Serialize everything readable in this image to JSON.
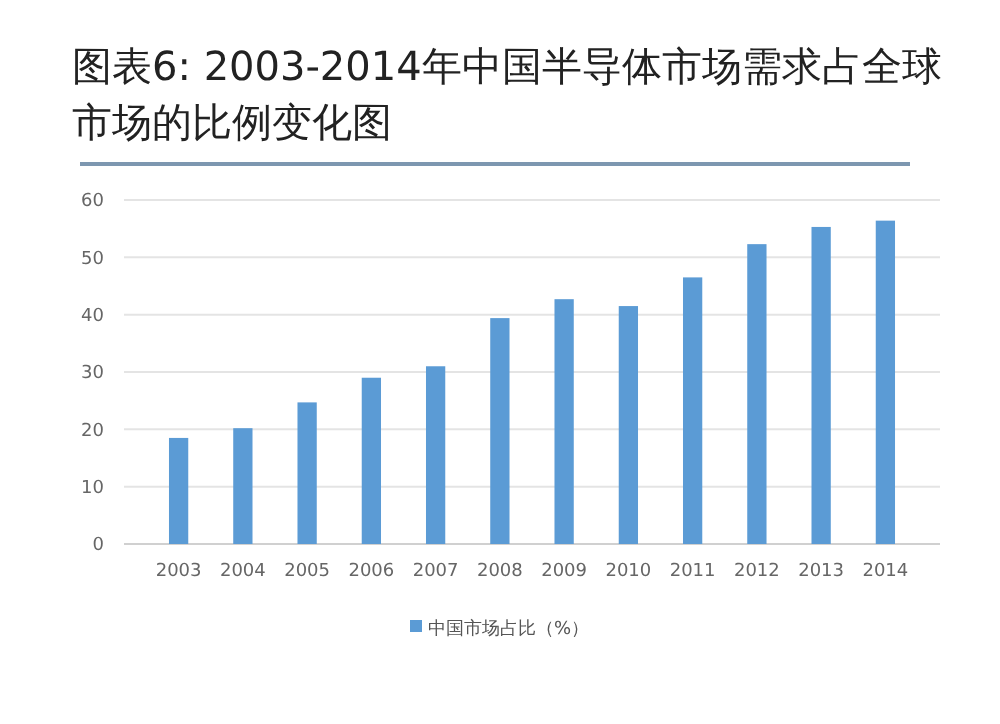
{
  "chart_data": {
    "type": "bar",
    "title": "图表6: 2003-2014年中国半导体市场需求占全球市场的比例变化图",
    "categories": [
      "2003",
      "2004",
      "2005",
      "2006",
      "2007",
      "2008",
      "2009",
      "2010",
      "2011",
      "2012",
      "2013",
      "2014"
    ],
    "series": [
      {
        "name": "中国市场占比（%）",
        "color": "#5b9bd5",
        "values": [
          18.5,
          20.2,
          24.7,
          29,
          31,
          39.4,
          42.7,
          41.5,
          46.5,
          52.3,
          55.3,
          56.4
        ]
      }
    ],
    "ylim": [
      0,
      60
    ],
    "yticks": [
      0,
      10,
      20,
      30,
      40,
      50,
      60
    ],
    "grid": "y",
    "legend": "bottom"
  }
}
